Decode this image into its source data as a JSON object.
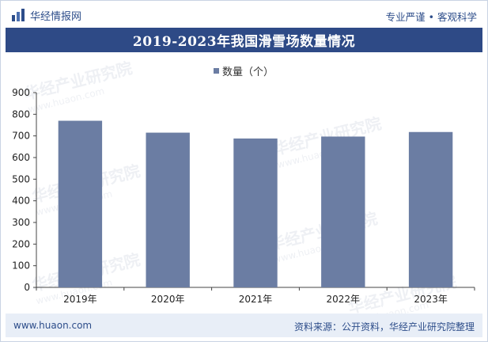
{
  "header": {
    "brand_name": "华经情报网",
    "tagline": "专业严谨 • 客观科学"
  },
  "colors": {
    "title_bg": "#2e4a86",
    "bar": "#6b7da3",
    "accent_text": "#2d4d8a"
  },
  "chart_data": {
    "type": "bar",
    "title": "2019-2023年我国滑雪场数量情况",
    "categories": [
      "2019年",
      "2020年",
      "2021年",
      "2022年",
      "2023年"
    ],
    "series": [
      {
        "name": "数量（个）",
        "values": [
          770,
          715,
          688,
          697,
          718
        ]
      }
    ],
    "xlabel": "",
    "ylabel": "",
    "ylim": [
      0,
      900
    ],
    "yticks": [
      0,
      100,
      200,
      300,
      400,
      500,
      600,
      700,
      800,
      900
    ],
    "grid": false,
    "legend_position": "top-center"
  },
  "watermark": {
    "cn": "华经产业研究院",
    "en": "www.huaon.com"
  },
  "footer": {
    "website": "www.huaon.com",
    "source": "资料来源：公开资料，华经产业研究院整理"
  }
}
